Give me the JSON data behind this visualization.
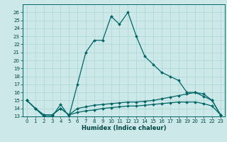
{
  "title": "",
  "xlabel": "Humidex (Indice chaleur)",
  "xlim": [
    -0.5,
    23.5
  ],
  "ylim": [
    13,
    27
  ],
  "yticks": [
    13,
    14,
    15,
    16,
    17,
    18,
    19,
    20,
    21,
    22,
    23,
    24,
    25,
    26
  ],
  "xticks": [
    0,
    1,
    2,
    3,
    4,
    5,
    6,
    7,
    8,
    9,
    10,
    11,
    12,
    13,
    14,
    15,
    16,
    17,
    18,
    19,
    20,
    21,
    22,
    23
  ],
  "bg_color": "#cce8e8",
  "grid_color": "#aad4d4",
  "line_color": "#006666",
  "line1_x": [
    0,
    1,
    2,
    3,
    4,
    5,
    6,
    7,
    8,
    9,
    10,
    11,
    12,
    13,
    14,
    15,
    16,
    17,
    18,
    19,
    20,
    21,
    22,
    23
  ],
  "line1_y": [
    15.0,
    14.0,
    13.0,
    13.0,
    14.5,
    13.0,
    17.0,
    21.0,
    22.5,
    22.5,
    25.5,
    24.5,
    26.0,
    23.0,
    20.5,
    19.5,
    18.5,
    18.0,
    17.5,
    16.0,
    16.0,
    15.5,
    15.0,
    13.2
  ],
  "line2_x": [
    0,
    1,
    2,
    3,
    4,
    5,
    6,
    7,
    8,
    9,
    10,
    11,
    12,
    13,
    14,
    15,
    16,
    17,
    18,
    19,
    20,
    21,
    22,
    23
  ],
  "line2_y": [
    15.0,
    14.0,
    13.2,
    13.2,
    14.0,
    13.2,
    14.0,
    14.2,
    14.4,
    14.5,
    14.6,
    14.7,
    14.8,
    14.8,
    14.9,
    15.0,
    15.2,
    15.4,
    15.6,
    15.8,
    16.0,
    15.8,
    15.0,
    13.2
  ],
  "line3_x": [
    0,
    1,
    2,
    3,
    4,
    5,
    6,
    7,
    8,
    9,
    10,
    11,
    12,
    13,
    14,
    15,
    16,
    17,
    18,
    19,
    20,
    21,
    22,
    23
  ],
  "line3_y": [
    15.0,
    14.0,
    13.2,
    13.2,
    14.0,
    13.2,
    13.5,
    13.7,
    13.8,
    14.0,
    14.1,
    14.2,
    14.3,
    14.3,
    14.4,
    14.5,
    14.6,
    14.7,
    14.8,
    14.8,
    14.8,
    14.6,
    14.3,
    13.2
  ],
  "xlabel_fontsize": 6,
  "tick_fontsize": 5,
  "linewidth": 0.9,
  "markersize": 2.0
}
